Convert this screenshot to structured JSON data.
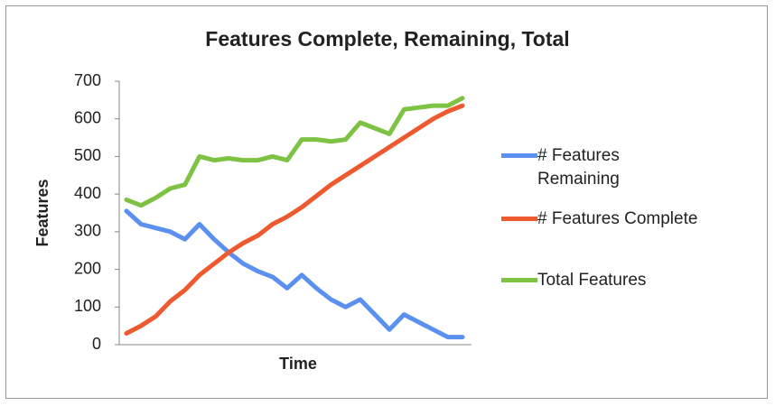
{
  "chart_data": {
    "type": "line",
    "title": "Features Complete, Remaining, Total",
    "x_label": "Time",
    "y_label": "Features",
    "categories": [
      null,
      null,
      null,
      null,
      null,
      null,
      null,
      null,
      null,
      null,
      null,
      null,
      null,
      null,
      null,
      null,
      null,
      null,
      null,
      null,
      null,
      null,
      null,
      null
    ],
    "ylim": [
      0,
      700
    ],
    "yticks": [
      0,
      100,
      200,
      300,
      400,
      500,
      600,
      700
    ],
    "grid": false,
    "legend": "right",
    "series": [
      {
        "name": "# Features Remaining",
        "color": "#5b8ff0",
        "values": [
          355,
          320,
          310,
          300,
          280,
          320,
          280,
          245,
          215,
          195,
          180,
          150,
          185,
          150,
          120,
          100,
          120,
          80,
          40,
          80,
          60,
          40,
          20,
          20
        ]
      },
      {
        "name": "# Features Complete",
        "color": "#ee5a2f",
        "values": [
          30,
          50,
          75,
          115,
          145,
          185,
          215,
          245,
          270,
          290,
          320,
          340,
          365,
          395,
          425,
          450,
          475,
          500,
          525,
          550,
          575,
          600,
          620,
          635
        ]
      },
      {
        "name": "Total Features",
        "color": "#7dc242",
        "values": [
          385,
          370,
          390,
          415,
          425,
          500,
          490,
          495,
          490,
          490,
          500,
          490,
          545,
          545,
          540,
          545,
          590,
          575,
          560,
          625,
          630,
          635,
          635,
          655
        ]
      }
    ]
  }
}
